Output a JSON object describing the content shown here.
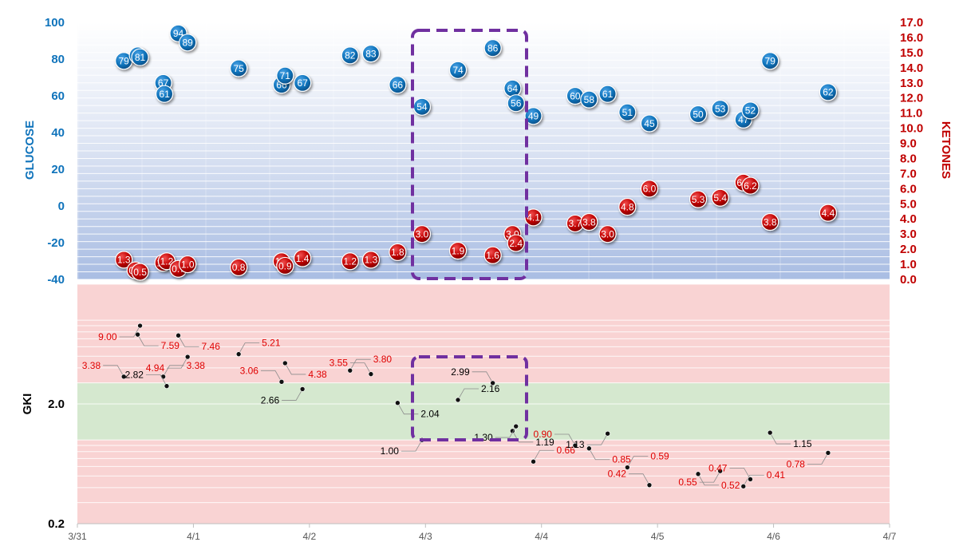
{
  "colors": {
    "glucose": "#0f73bb",
    "ketones": "#c00000",
    "gki_in_range": "#000000",
    "gki_out_range": "#e00000",
    "highlight": "#7030a0",
    "green_band": "#d5e8cf",
    "red_band": "#f9d3d3"
  },
  "chart_data": [
    {
      "type": "scatter",
      "ylabel": "GLUCOSE",
      "ylabel_right": "KETONES",
      "ylim": [
        -40,
        100
      ],
      "ylim_right": [
        0,
        17
      ],
      "y_ticks": [
        100,
        80,
        60,
        40,
        20,
        0,
        -20,
        -40
      ],
      "y_right_ticks": [
        "17.0",
        "16.0",
        "15.0",
        "14.0",
        "13.0",
        "12.0",
        "11.0",
        "10.0",
        "9.0",
        "8.0",
        "7.0",
        "6.0",
        "5.0",
        "4.0",
        "3.0",
        "2.0",
        "1.0",
        "0.0"
      ],
      "series": [
        {
          "name": "GLUCOSE",
          "axis": "left",
          "points": [
            {
              "x": 0.4,
              "y": 79,
              "label": "79"
            },
            {
              "x": 0.52,
              "y": 82,
              "label": "82"
            },
            {
              "x": 0.54,
              "y": 81,
              "label": "81"
            },
            {
              "x": 0.74,
              "y": 67,
              "label": "67"
            },
            {
              "x": 0.75,
              "y": 61,
              "label": "61"
            },
            {
              "x": 0.87,
              "y": 94,
              "label": "94"
            },
            {
              "x": 0.95,
              "y": 89,
              "label": "89"
            },
            {
              "x": 1.39,
              "y": 75,
              "label": "75"
            },
            {
              "x": 1.76,
              "y": 66,
              "label": "66"
            },
            {
              "x": 1.79,
              "y": 71,
              "label": "71"
            },
            {
              "x": 1.94,
              "y": 67,
              "label": "67"
            },
            {
              "x": 2.35,
              "y": 82,
              "label": "82"
            },
            {
              "x": 2.53,
              "y": 83,
              "label": "83"
            },
            {
              "x": 2.76,
              "y": 66,
              "label": "66"
            },
            {
              "x": 2.97,
              "y": 54,
              "label": "54"
            },
            {
              "x": 3.28,
              "y": 74,
              "label": "74"
            },
            {
              "x": 3.58,
              "y": 86,
              "label": "86"
            },
            {
              "x": 3.75,
              "y": 64,
              "label": "64"
            },
            {
              "x": 3.78,
              "y": 56,
              "label": "56"
            },
            {
              "x": 3.93,
              "y": 49,
              "label": "49"
            },
            {
              "x": 4.29,
              "y": 60,
              "label": "60"
            },
            {
              "x": 4.41,
              "y": 58,
              "label": "58"
            },
            {
              "x": 4.57,
              "y": 61,
              "label": "61"
            },
            {
              "x": 4.74,
              "y": 51,
              "label": "51"
            },
            {
              "x": 4.93,
              "y": 45,
              "label": "45"
            },
            {
              "x": 5.35,
              "y": 50,
              "label": "50"
            },
            {
              "x": 5.54,
              "y": 53,
              "label": "53"
            },
            {
              "x": 5.74,
              "y": 47,
              "label": "47"
            },
            {
              "x": 5.8,
              "y": 52,
              "label": "52"
            },
            {
              "x": 5.97,
              "y": 79,
              "label": "79"
            },
            {
              "x": 6.47,
              "y": 62,
              "label": "62"
            }
          ]
        },
        {
          "name": "KETONES",
          "axis": "right",
          "points": [
            {
              "x": 0.4,
              "y": 1.3,
              "label": "1.3"
            },
            {
              "x": 0.5,
              "y": 0.6,
              "label": "0.6"
            },
            {
              "x": 0.54,
              "y": 0.5,
              "label": "0.5"
            },
            {
              "x": 0.74,
              "y": 1.1,
              "label": "1.1"
            },
            {
              "x": 0.77,
              "y": 1.2,
              "label": "1.2"
            },
            {
              "x": 0.87,
              "y": 0.7,
              "label": "0.7"
            },
            {
              "x": 0.95,
              "y": 1.0,
              "label": "1.0"
            },
            {
              "x": 1.39,
              "y": 0.8,
              "label": "0.8"
            },
            {
              "x": 1.76,
              "y": 1.2,
              "label": "1.2"
            },
            {
              "x": 1.79,
              "y": 0.9,
              "label": "0.9"
            },
            {
              "x": 1.94,
              "y": 1.4,
              "label": "1.4"
            },
            {
              "x": 2.35,
              "y": 1.2,
              "label": "1.2"
            },
            {
              "x": 2.53,
              "y": 1.3,
              "label": "1.3"
            },
            {
              "x": 2.76,
              "y": 1.8,
              "label": "1.8"
            },
            {
              "x": 2.97,
              "y": 3.0,
              "label": "3.0"
            },
            {
              "x": 3.28,
              "y": 1.9,
              "label": "1.9"
            },
            {
              "x": 3.58,
              "y": 1.6,
              "label": "1.6"
            },
            {
              "x": 3.75,
              "y": 3.0,
              "label": "3.0"
            },
            {
              "x": 3.78,
              "y": 2.4,
              "label": "2.4"
            },
            {
              "x": 3.93,
              "y": 4.1,
              "label": "4.1"
            },
            {
              "x": 4.29,
              "y": 3.7,
              "label": "3.7"
            },
            {
              "x": 4.41,
              "y": 3.8,
              "label": "3.8"
            },
            {
              "x": 4.57,
              "y": 3.0,
              "label": "3.0"
            },
            {
              "x": 4.74,
              "y": 4.8,
              "label": "4.8"
            },
            {
              "x": 4.93,
              "y": 6.0,
              "label": "6.0"
            },
            {
              "x": 5.35,
              "y": 5.3,
              "label": "5.3"
            },
            {
              "x": 5.54,
              "y": 5.4,
              "label": "5.4"
            },
            {
              "x": 5.74,
              "y": 6.4,
              "label": "6.4"
            },
            {
              "x": 5.8,
              "y": 6.2,
              "label": "6.2"
            },
            {
              "x": 5.97,
              "y": 3.8,
              "label": "3.8"
            },
            {
              "x": 6.47,
              "y": 4.4,
              "label": "4.4"
            }
          ]
        }
      ],
      "grid": true,
      "legend": "none"
    },
    {
      "type": "scatter",
      "ylabel": "GKI",
      "yscale": "log",
      "ylim": [
        0.2,
        20
      ],
      "y_ticks": [
        "2.0",
        "0.2"
      ],
      "x_ticks": [
        "3/31",
        "4/1",
        "4/2",
        "4/3",
        "4/4",
        "4/5",
        "4/6",
        "4/7"
      ],
      "target_band": [
        1,
        3
      ],
      "points": [
        {
          "x": 0.4,
          "y": 3.38,
          "label": "3.38"
        },
        {
          "x": 0.52,
          "y": 7.59,
          "label": "7.59"
        },
        {
          "x": 0.54,
          "y": 9.0,
          "label": "9.00"
        },
        {
          "x": 0.74,
          "y": 3.38,
          "label": "3.38"
        },
        {
          "x": 0.77,
          "y": 2.82,
          "label": "2.82"
        },
        {
          "x": 0.87,
          "y": 7.46,
          "label": "7.46"
        },
        {
          "x": 0.95,
          "y": 4.94,
          "label": "4.94"
        },
        {
          "x": 1.39,
          "y": 5.21,
          "label": "5.21"
        },
        {
          "x": 1.76,
          "y": 3.06,
          "label": "3.06"
        },
        {
          "x": 1.79,
          "y": 4.38,
          "label": "4.38"
        },
        {
          "x": 1.94,
          "y": 2.66,
          "label": "2.66"
        },
        {
          "x": 2.35,
          "y": 3.8,
          "label": "3.80"
        },
        {
          "x": 2.53,
          "y": 3.55,
          "label": "3.55"
        },
        {
          "x": 2.76,
          "y": 2.04,
          "label": "2.04"
        },
        {
          "x": 2.97,
          "y": 1.0,
          "label": "1.00"
        },
        {
          "x": 3.28,
          "y": 2.16,
          "label": "2.16"
        },
        {
          "x": 3.58,
          "y": 2.99,
          "label": "2.99"
        },
        {
          "x": 3.75,
          "y": 1.19,
          "label": "1.19"
        },
        {
          "x": 3.78,
          "y": 1.3,
          "label": "1.30"
        },
        {
          "x": 3.93,
          "y": 0.66,
          "label": "0.66"
        },
        {
          "x": 4.29,
          "y": 0.9,
          "label": "0.90"
        },
        {
          "x": 4.41,
          "y": 0.85,
          "label": "0.85"
        },
        {
          "x": 4.57,
          "y": 1.13,
          "label": "1.13"
        },
        {
          "x": 4.74,
          "y": 0.59,
          "label": "0.59"
        },
        {
          "x": 4.93,
          "y": 0.42,
          "label": "0.42"
        },
        {
          "x": 5.35,
          "y": 0.52,
          "label": "0.52"
        },
        {
          "x": 5.54,
          "y": 0.55,
          "label": "0.55"
        },
        {
          "x": 5.74,
          "y": 0.41,
          "label": "0.41"
        },
        {
          "x": 5.8,
          "y": 0.47,
          "label": "0.47"
        },
        {
          "x": 5.97,
          "y": 1.15,
          "label": "1.15"
        },
        {
          "x": 6.47,
          "y": 0.78,
          "label": "0.78"
        }
      ],
      "grid": true,
      "legend": "none"
    }
  ]
}
